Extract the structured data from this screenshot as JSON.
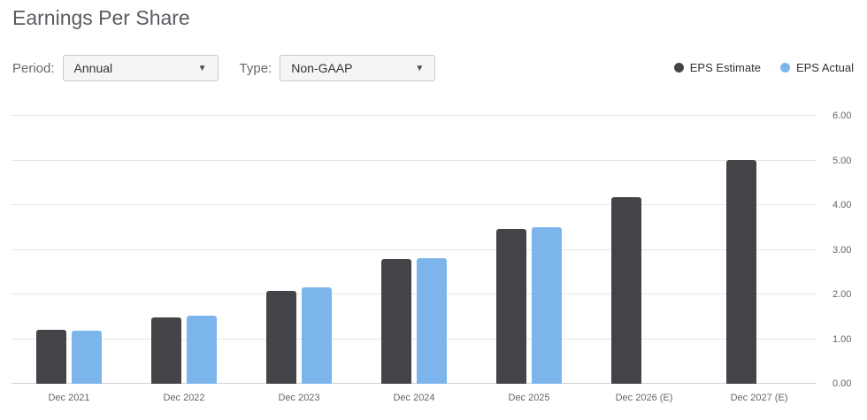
{
  "header": {
    "title": "Earnings Per Share"
  },
  "controls": {
    "period_label": "Period:",
    "period_value": "Annual",
    "type_label": "Type:",
    "type_value": "Non-GAAP",
    "dropdown_arrow": "▼"
  },
  "legend": [
    {
      "label": "EPS Estimate",
      "color": "#434348"
    },
    {
      "label": "EPS Actual",
      "color": "#7cb5ec"
    }
  ],
  "chart_data": {
    "type": "bar",
    "title": "Earnings Per Share",
    "categories": [
      "Dec 2021",
      "Dec 2022",
      "Dec 2023",
      "Dec 2024",
      "Dec 2025",
      "Dec 2026 (E)",
      "Dec 2027 (E)"
    ],
    "series": [
      {
        "name": "EPS Estimate",
        "color": "#434348",
        "values": [
          1.2,
          1.48,
          2.08,
          2.79,
          3.46,
          4.18,
          5.01
        ]
      },
      {
        "name": "EPS Actual",
        "color": "#7cb5ec",
        "values": [
          1.18,
          1.53,
          2.15,
          2.81,
          3.5,
          null,
          null
        ]
      }
    ],
    "xlabel": "",
    "ylabel": "",
    "ylim": [
      0,
      6
    ],
    "yticks": [
      "0.00",
      "1.00",
      "2.00",
      "3.00",
      "4.00",
      "5.00",
      "6.00"
    ],
    "grid": true,
    "legend_position": "top-right",
    "y_axis_side": "right"
  }
}
